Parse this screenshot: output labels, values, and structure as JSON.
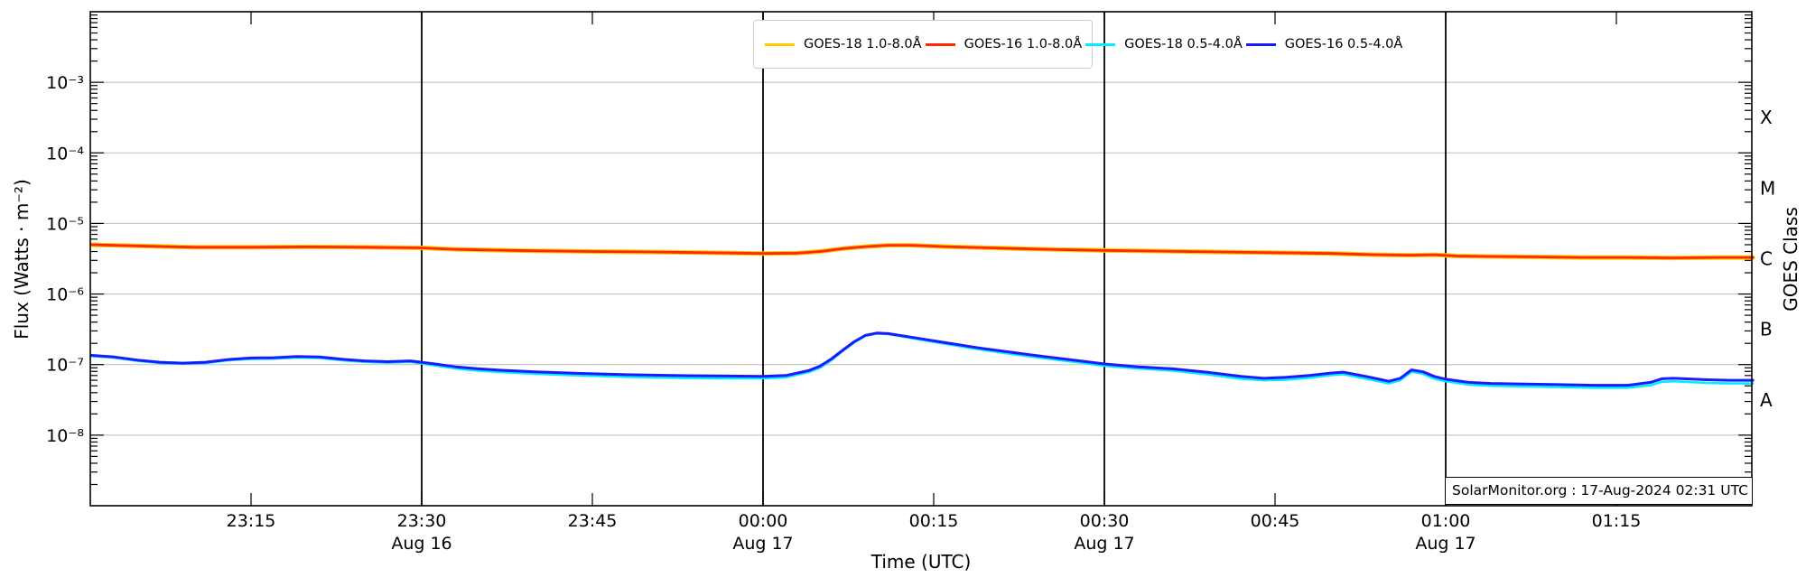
{
  "chart": {
    "ylabel_left": "Flux (Watts · m⁻²)",
    "ylabel_right": "GOES Class",
    "xlabel": "Time (UTC)",
    "annotation": "SolarMonitor.org : 17-Aug-2024 02:31 UTC",
    "colors": {
      "goes18_long": "#ffcc00",
      "goes16_long": "#ff2600",
      "goes18_short": "#00eeff",
      "goes16_short": "#1a1aff",
      "gridline": "#bbbbbb",
      "day_line": "#000000",
      "frame": "#000000"
    },
    "legend": {
      "entries": [
        {
          "label": "GOES-18 1.0-8.0Å",
          "color": "#ffcc00"
        },
        {
          "label": "GOES-16 1.0-8.0Å",
          "color": "#ff2600"
        },
        {
          "label": "GOES-18 0.5-4.0Å",
          "color": "#00eeff"
        },
        {
          "label": "GOES-16 0.5-4.0Å",
          "color": "#1a1aff"
        }
      ]
    }
  },
  "chart_data": {
    "type": "line",
    "title": "",
    "xlabel": "Time (UTC)",
    "ylabel": "Flux (Watts · m⁻²)",
    "x_axis": {
      "unit": "minutes after 23:00 UTC 16-Aug-2024",
      "range_minutes": [
        1,
        147
      ],
      "ticks": [
        {
          "t": 15,
          "label": "23:15"
        },
        {
          "t": 30,
          "label": "23:30",
          "date": "Aug 16"
        },
        {
          "t": 45,
          "label": "23:45"
        },
        {
          "t": 60,
          "label": "00:00",
          "date": "Aug 17"
        },
        {
          "t": 75,
          "label": "00:15"
        },
        {
          "t": 90,
          "label": "00:30",
          "date": "Aug 17"
        },
        {
          "t": 105,
          "label": "00:45"
        },
        {
          "t": 120,
          "label": "01:00",
          "date": "Aug 17"
        },
        {
          "t": 135,
          "label": "01:15"
        }
      ],
      "day_line_ts": [
        30,
        60,
        90,
        120
      ]
    },
    "y_axis": {
      "scale": "log",
      "range": [
        1e-09,
        0.01
      ],
      "grid": true,
      "ticks": [
        {
          "exp": -3,
          "label": "10⁻³"
        },
        {
          "exp": -4,
          "label": "10⁻⁴"
        },
        {
          "exp": -5,
          "label": "10⁻⁵"
        },
        {
          "exp": -6,
          "label": "10⁻⁶"
        },
        {
          "exp": -7,
          "label": "10⁻⁷"
        },
        {
          "exp": -8,
          "label": "10⁻⁸"
        }
      ]
    },
    "goes_classes": [
      {
        "label": "X",
        "exp": -3.5
      },
      {
        "label": "M",
        "exp": -4.5
      },
      {
        "label": "C",
        "exp": -5.5
      },
      {
        "label": "B",
        "exp": -6.5
      },
      {
        "label": "A",
        "exp": -7.5
      }
    ],
    "legend_position": "top center",
    "series": [
      {
        "name": "GOES-18 1.0-8.0Å",
        "color": "#ffcc00",
        "width": 5,
        "points": [
          [
            1,
            5e-06
          ],
          [
            5,
            4.8e-06
          ],
          [
            10,
            4.6e-06
          ],
          [
            15,
            4.6e-06
          ],
          [
            20,
            4.65e-06
          ],
          [
            25,
            4.6e-06
          ],
          [
            30,
            4.5e-06
          ],
          [
            33,
            4.3e-06
          ],
          [
            36,
            4.2e-06
          ],
          [
            40,
            4.1e-06
          ],
          [
            45,
            4e-06
          ],
          [
            50,
            3.95e-06
          ],
          [
            55,
            3.85e-06
          ],
          [
            60,
            3.75e-06
          ],
          [
            63,
            3.8e-06
          ],
          [
            65,
            4e-06
          ],
          [
            67,
            4.4e-06
          ],
          [
            69,
            4.7e-06
          ],
          [
            71,
            4.9e-06
          ],
          [
            73,
            4.9e-06
          ],
          [
            76,
            4.7e-06
          ],
          [
            80,
            4.5e-06
          ],
          [
            85,
            4.3e-06
          ],
          [
            90,
            4.15e-06
          ],
          [
            95,
            4.05e-06
          ],
          [
            100,
            3.95e-06
          ],
          [
            105,
            3.85e-06
          ],
          [
            110,
            3.75e-06
          ],
          [
            114,
            3.6e-06
          ],
          [
            117,
            3.55e-06
          ],
          [
            119,
            3.6e-06
          ],
          [
            121,
            3.45e-06
          ],
          [
            124,
            3.4e-06
          ],
          [
            128,
            3.35e-06
          ],
          [
            132,
            3.3e-06
          ],
          [
            136,
            3.3e-06
          ],
          [
            140,
            3.25e-06
          ],
          [
            144,
            3.3e-06
          ],
          [
            147,
            3.3e-06
          ]
        ]
      },
      {
        "name": "GOES-16 1.0-8.0Å",
        "color": "#ff2600",
        "width": 2.8,
        "points": [
          [
            1,
            5e-06
          ],
          [
            5,
            4.8e-06
          ],
          [
            10,
            4.6e-06
          ],
          [
            15,
            4.6e-06
          ],
          [
            20,
            4.65e-06
          ],
          [
            25,
            4.6e-06
          ],
          [
            30,
            4.5e-06
          ],
          [
            33,
            4.3e-06
          ],
          [
            36,
            4.2e-06
          ],
          [
            40,
            4.1e-06
          ],
          [
            45,
            4e-06
          ],
          [
            50,
            3.95e-06
          ],
          [
            55,
            3.85e-06
          ],
          [
            60,
            3.75e-06
          ],
          [
            63,
            3.8e-06
          ],
          [
            65,
            4e-06
          ],
          [
            67,
            4.4e-06
          ],
          [
            69,
            4.7e-06
          ],
          [
            71,
            4.9e-06
          ],
          [
            73,
            4.9e-06
          ],
          [
            76,
            4.7e-06
          ],
          [
            80,
            4.5e-06
          ],
          [
            85,
            4.3e-06
          ],
          [
            90,
            4.15e-06
          ],
          [
            95,
            4.05e-06
          ],
          [
            100,
            3.95e-06
          ],
          [
            105,
            3.85e-06
          ],
          [
            110,
            3.75e-06
          ],
          [
            114,
            3.6e-06
          ],
          [
            117,
            3.55e-06
          ],
          [
            119,
            3.6e-06
          ],
          [
            121,
            3.45e-06
          ],
          [
            124,
            3.4e-06
          ],
          [
            128,
            3.35e-06
          ],
          [
            132,
            3.3e-06
          ],
          [
            136,
            3.3e-06
          ],
          [
            140,
            3.25e-06
          ],
          [
            144,
            3.3e-06
          ],
          [
            147,
            3.3e-06
          ]
        ]
      },
      {
        "name": "GOES-18 0.5-4.0Å",
        "color": "#00eeff",
        "width": 2.6,
        "points": [
          [
            1,
            1.32e-07
          ],
          [
            3,
            1.25e-07
          ],
          [
            5,
            1.13e-07
          ],
          [
            7,
            1.05e-07
          ],
          [
            9,
            1.03e-07
          ],
          [
            11,
            1.05e-07
          ],
          [
            13,
            1.15e-07
          ],
          [
            15,
            1.2e-07
          ],
          [
            17,
            1.21e-07
          ],
          [
            19,
            1.26e-07
          ],
          [
            21,
            1.24e-07
          ],
          [
            23,
            1.15e-07
          ],
          [
            25,
            1.09e-07
          ],
          [
            27,
            1.06e-07
          ],
          [
            29,
            1.09e-07
          ],
          [
            31,
            9.8e-08
          ],
          [
            33,
            8.8e-08
          ],
          [
            35,
            8.2e-08
          ],
          [
            37,
            7.8e-08
          ],
          [
            40,
            7.4e-08
          ],
          [
            44,
            7e-08
          ],
          [
            48,
            6.7e-08
          ],
          [
            52,
            6.5e-08
          ],
          [
            56,
            6.4e-08
          ],
          [
            60,
            6.4e-08
          ],
          [
            62,
            6.6e-08
          ],
          [
            64,
            7.8e-08
          ],
          [
            65,
            9e-08
          ],
          [
            66,
            1.15e-07
          ],
          [
            67,
            1.55e-07
          ],
          [
            68,
            2.05e-07
          ],
          [
            69,
            2.55e-07
          ],
          [
            70,
            2.75e-07
          ],
          [
            71,
            2.7e-07
          ],
          [
            73,
            2.38e-07
          ],
          [
            76,
            1.97e-07
          ],
          [
            79,
            1.64e-07
          ],
          [
            82,
            1.4e-07
          ],
          [
            85,
            1.21e-07
          ],
          [
            88,
            1.06e-07
          ],
          [
            90,
            9.6e-08
          ],
          [
            93,
            8.8e-08
          ],
          [
            96,
            8.2e-08
          ],
          [
            99,
            7.3e-08
          ],
          [
            102,
            6.3e-08
          ],
          [
            104,
            6e-08
          ],
          [
            106,
            6.1e-08
          ],
          [
            108,
            6.5e-08
          ],
          [
            110,
            7.1e-08
          ],
          [
            111,
            7.3e-08
          ],
          [
            113,
            6.3e-08
          ],
          [
            115,
            5.4e-08
          ],
          [
            116,
            6e-08
          ],
          [
            117,
            7.9e-08
          ],
          [
            118,
            7.4e-08
          ],
          [
            119,
            6.3e-08
          ],
          [
            120,
            5.8e-08
          ],
          [
            122,
            5.2e-08
          ],
          [
            124,
            5e-08
          ],
          [
            127,
            4.9e-08
          ],
          [
            130,
            4.8e-08
          ],
          [
            133,
            4.7e-08
          ],
          [
            136,
            4.7e-08
          ],
          [
            138,
            5.1e-08
          ],
          [
            139,
            5.7e-08
          ],
          [
            140,
            5.8e-08
          ],
          [
            141,
            5.7e-08
          ],
          [
            143,
            5.5e-08
          ],
          [
            145,
            5.4e-08
          ],
          [
            147,
            5.4e-08
          ]
        ]
      },
      {
        "name": "GOES-16 0.5-4.0Å",
        "color": "#1a1aff",
        "width": 3,
        "points": [
          [
            1,
            1.35e-07
          ],
          [
            3,
            1.28e-07
          ],
          [
            5,
            1.16e-07
          ],
          [
            7,
            1.08e-07
          ],
          [
            9,
            1.05e-07
          ],
          [
            11,
            1.08e-07
          ],
          [
            13,
            1.18e-07
          ],
          [
            15,
            1.24e-07
          ],
          [
            17,
            1.25e-07
          ],
          [
            19,
            1.3e-07
          ],
          [
            21,
            1.28e-07
          ],
          [
            23,
            1.19e-07
          ],
          [
            25,
            1.13e-07
          ],
          [
            27,
            1.1e-07
          ],
          [
            29,
            1.13e-07
          ],
          [
            31,
            1.03e-07
          ],
          [
            33,
            9.3e-08
          ],
          [
            35,
            8.7e-08
          ],
          [
            37,
            8.3e-08
          ],
          [
            40,
            7.9e-08
          ],
          [
            44,
            7.5e-08
          ],
          [
            48,
            7.2e-08
          ],
          [
            52,
            7e-08
          ],
          [
            56,
            6.9e-08
          ],
          [
            60,
            6.8e-08
          ],
          [
            62,
            7e-08
          ],
          [
            64,
            8.2e-08
          ],
          [
            65,
            9.5e-08
          ],
          [
            66,
            1.2e-07
          ],
          [
            67,
            1.6e-07
          ],
          [
            68,
            2.1e-07
          ],
          [
            69,
            2.6e-07
          ],
          [
            70,
            2.8e-07
          ],
          [
            71,
            2.75e-07
          ],
          [
            73,
            2.45e-07
          ],
          [
            76,
            2.05e-07
          ],
          [
            79,
            1.72e-07
          ],
          [
            82,
            1.48e-07
          ],
          [
            85,
            1.28e-07
          ],
          [
            88,
            1.12e-07
          ],
          [
            90,
            1.02e-07
          ],
          [
            93,
            9.3e-08
          ],
          [
            96,
            8.7e-08
          ],
          [
            99,
            7.8e-08
          ],
          [
            102,
            6.8e-08
          ],
          [
            104,
            6.4e-08
          ],
          [
            106,
            6.6e-08
          ],
          [
            108,
            7e-08
          ],
          [
            110,
            7.6e-08
          ],
          [
            111,
            7.8e-08
          ],
          [
            113,
            6.8e-08
          ],
          [
            115,
            5.8e-08
          ],
          [
            116,
            6.4e-08
          ],
          [
            117,
            8.4e-08
          ],
          [
            118,
            7.9e-08
          ],
          [
            119,
            6.8e-08
          ],
          [
            120,
            6.2e-08
          ],
          [
            122,
            5.6e-08
          ],
          [
            124,
            5.4e-08
          ],
          [
            127,
            5.3e-08
          ],
          [
            130,
            5.2e-08
          ],
          [
            133,
            5.1e-08
          ],
          [
            136,
            5.1e-08
          ],
          [
            138,
            5.6e-08
          ],
          [
            139,
            6.3e-08
          ],
          [
            140,
            6.4e-08
          ],
          [
            141,
            6.3e-08
          ],
          [
            143,
            6.1e-08
          ],
          [
            145,
            6e-08
          ],
          [
            147,
            6e-08
          ]
        ]
      }
    ]
  }
}
